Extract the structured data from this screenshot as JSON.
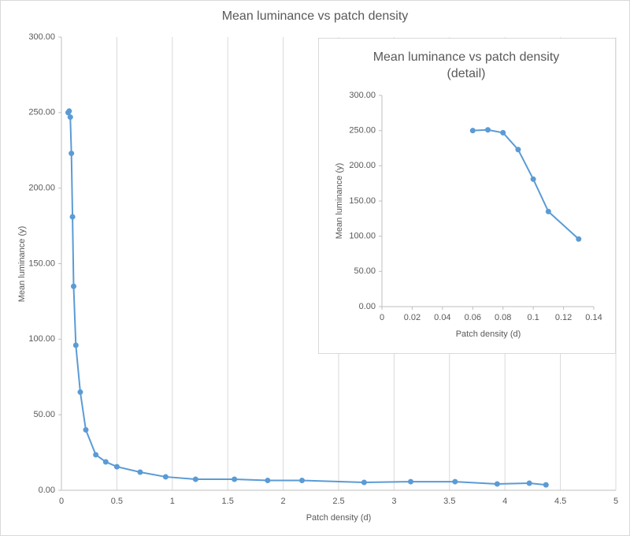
{
  "chart_data": [
    {
      "type": "line",
      "title": "Mean luminance vs patch density",
      "x_label": "Patch density (d)",
      "y_label": "Mean luminance (y)",
      "x": [
        0.06,
        0.07,
        0.08,
        0.09,
        0.1,
        0.11,
        0.13,
        0.17,
        0.22,
        0.31,
        0.4,
        0.5,
        0.71,
        0.94,
        1.21,
        1.56,
        1.86,
        2.17,
        2.73,
        3.15,
        3.55,
        3.93,
        4.22,
        4.37
      ],
      "values": [
        250,
        251,
        247,
        223,
        181,
        135,
        96,
        65,
        40,
        23.5,
        18.8,
        15.6,
        12,
        8.9,
        7.3,
        7.3,
        6.5,
        6.5,
        5.2,
        5.7,
        5.7,
        4.2,
        4.7,
        3.6
      ],
      "color": "#5b9bd5",
      "xlim": [
        0,
        5
      ],
      "xticks": [
        0,
        0.5,
        1,
        1.5,
        2,
        2.5,
        3,
        3.5,
        4,
        4.5,
        5
      ],
      "ylim": [
        0,
        300
      ],
      "yticks": [
        {
          "value": 0,
          "label": "0.00"
        },
        {
          "value": 50,
          "label": "50.00"
        },
        {
          "value": 100,
          "label": "100.00"
        },
        {
          "value": 150,
          "label": "150.00"
        },
        {
          "value": 200,
          "label": "200.00"
        },
        {
          "value": 250,
          "label": "250.00"
        },
        {
          "value": 300,
          "label": "300.00"
        }
      ],
      "grid": true
    },
    {
      "type": "line",
      "title": "Mean luminance vs patch density (detail)",
      "x_label": "Patch density (d)",
      "y_label": "Mean luminance (y)",
      "x": [
        0.06,
        0.07,
        0.08,
        0.09,
        0.1,
        0.11,
        0.13
      ],
      "values": [
        250,
        251,
        247,
        223,
        181,
        135,
        96
      ],
      "color": "#5b9bd5",
      "xlim": [
        0,
        0.14
      ],
      "xticks": [
        0,
        0.02,
        0.04,
        0.06,
        0.08,
        0.1,
        0.12,
        0.14
      ],
      "ylim": [
        0,
        300
      ],
      "yticks": [
        {
          "value": 0,
          "label": "0.00"
        },
        {
          "value": 50,
          "label": "50.00"
        },
        {
          "value": 100,
          "label": "100.00"
        },
        {
          "value": 150,
          "label": "150.00"
        },
        {
          "value": 200,
          "label": "200.00"
        },
        {
          "value": 250,
          "label": "250.00"
        },
        {
          "value": 300,
          "label": "300.00"
        }
      ],
      "grid": false
    }
  ]
}
